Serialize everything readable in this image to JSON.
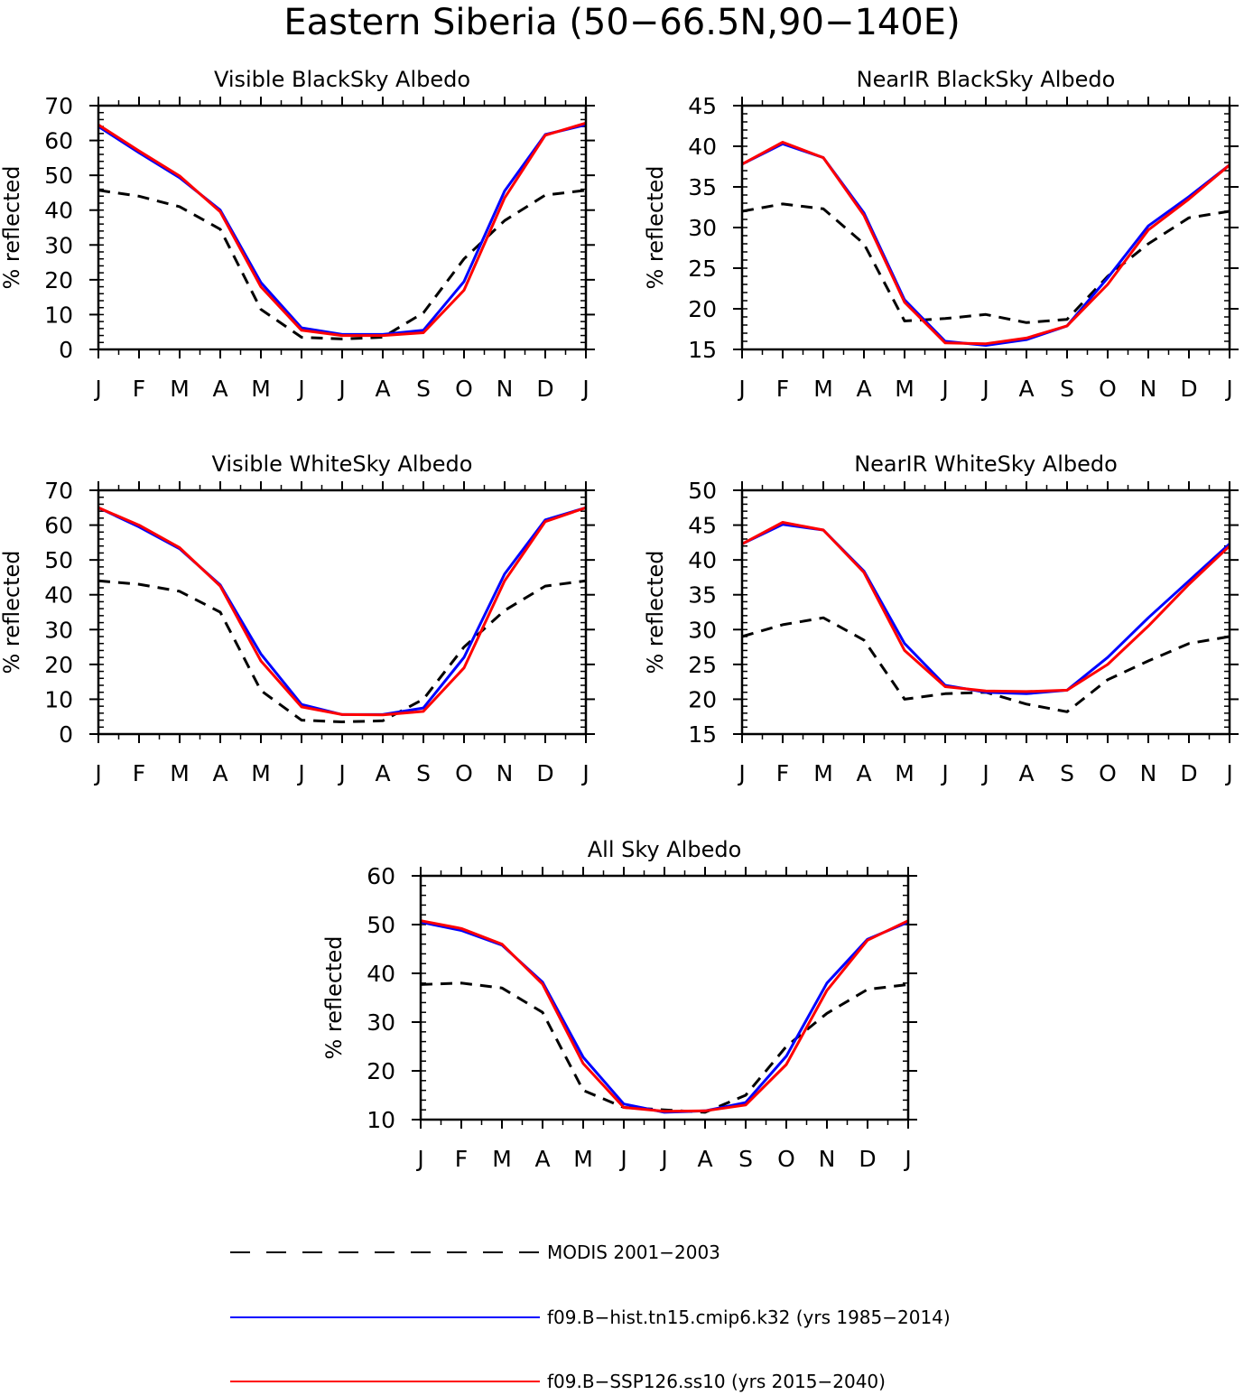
{
  "figure": {
    "title": "Eastern Siberia (50−66.5N,90−140E)"
  },
  "months": [
    "J",
    "F",
    "M",
    "A",
    "M",
    "J",
    "J",
    "A",
    "S",
    "O",
    "N",
    "D",
    "J"
  ],
  "colors": {
    "modis": "#000000",
    "hist": "#0000ff",
    "ssp": "#ff0000"
  },
  "legend": {
    "items": [
      {
        "key": "modis",
        "label": "MODIS 2001−2003",
        "color": "#000000",
        "style": "dashed"
      },
      {
        "key": "hist",
        "label": "f09.B−hist.tn15.cmip6.k32 (yrs 1985−2014)",
        "color": "#0000ff",
        "style": "solid"
      },
      {
        "key": "ssp",
        "label": "f09.B−SSP126.ss10 (yrs 2015−2040)",
        "color": "#ff0000",
        "style": "solid"
      }
    ]
  },
  "chart_data": [
    {
      "type": "line",
      "title": "Visible BlackSky Albedo",
      "ylabel": "% reflected",
      "xlabel": "",
      "categories": [
        "J",
        "F",
        "M",
        "A",
        "M",
        "J",
        "J",
        "A",
        "S",
        "O",
        "N",
        "D",
        "J"
      ],
      "ylim": [
        0,
        70
      ],
      "yticks": [
        0,
        10,
        20,
        30,
        40,
        50,
        60,
        70
      ],
      "series": [
        {
          "name": "MODIS 2001−2003",
          "key": "modis",
          "values": [
            45.7,
            44.0,
            41.0,
            34.5,
            11.5,
            3.5,
            3.0,
            3.5,
            10.5,
            26.0,
            37.0,
            44.3,
            45.7
          ]
        },
        {
          "name": "f09.B−hist.tn15.cmip6.k32 (yrs 1985−2014)",
          "key": "hist",
          "values": [
            64.0,
            56.5,
            49.3,
            40.0,
            19.2,
            6.2,
            4.3,
            4.3,
            5.5,
            19.5,
            45.5,
            61.7,
            64.5
          ]
        },
        {
          "name": "f09.B−SSP126.ss10 (yrs 2015−2040)",
          "key": "ssp",
          "values": [
            64.5,
            57.0,
            49.8,
            39.5,
            18.0,
            5.5,
            4.0,
            4.0,
            4.8,
            17.0,
            43.5,
            61.5,
            65.0
          ]
        }
      ]
    },
    {
      "type": "line",
      "title": "NearIR BlackSky Albedo",
      "ylabel": "% reflected",
      "xlabel": "",
      "categories": [
        "J",
        "F",
        "M",
        "A",
        "M",
        "J",
        "J",
        "A",
        "S",
        "O",
        "N",
        "D",
        "J"
      ],
      "ylim": [
        15,
        45
      ],
      "yticks": [
        15,
        20,
        25,
        30,
        35,
        40,
        45
      ],
      "series": [
        {
          "name": "MODIS 2001−2003",
          "key": "modis",
          "values": [
            32.0,
            32.9,
            32.3,
            28.0,
            18.5,
            18.8,
            19.3,
            18.3,
            18.7,
            24.0,
            28.0,
            31.2,
            32.0
          ]
        },
        {
          "name": "f09.B−hist.tn15.cmip6.k32 (yrs 1985−2014)",
          "key": "hist",
          "values": [
            37.8,
            40.3,
            38.6,
            31.8,
            21.1,
            16.0,
            15.5,
            16.2,
            17.9,
            23.8,
            30.2,
            33.8,
            37.7
          ]
        },
        {
          "name": "f09.B−SSP126.ss10 (yrs 2015−2040)",
          "key": "ssp",
          "values": [
            37.8,
            40.5,
            38.6,
            31.5,
            20.8,
            15.8,
            15.7,
            16.4,
            17.9,
            23.0,
            29.7,
            33.5,
            37.7
          ]
        }
      ]
    },
    {
      "type": "line",
      "title": "Visible WhiteSky Albedo",
      "ylabel": "% reflected",
      "xlabel": "",
      "categories": [
        "J",
        "F",
        "M",
        "A",
        "M",
        "J",
        "J",
        "A",
        "S",
        "O",
        "N",
        "D",
        "J"
      ],
      "ylim": [
        0,
        70
      ],
      "yticks": [
        0,
        10,
        20,
        30,
        40,
        50,
        60,
        70
      ],
      "series": [
        {
          "name": "MODIS 2001−2003",
          "key": "modis",
          "values": [
            44.0,
            43.0,
            41.0,
            35.0,
            12.5,
            4.0,
            3.5,
            3.8,
            10.0,
            25.0,
            35.5,
            42.5,
            44.0
          ]
        },
        {
          "name": "f09.B−hist.tn15.cmip6.k32 (yrs 1985−2014)",
          "key": "hist",
          "values": [
            65.0,
            59.5,
            53.2,
            42.8,
            23.0,
            8.5,
            5.6,
            5.6,
            7.5,
            22.0,
            46.0,
            61.5,
            65.0
          ]
        },
        {
          "name": "f09.B−SSP126.ss10 (yrs 2015−2040)",
          "key": "ssp",
          "values": [
            65.0,
            60.0,
            53.5,
            42.5,
            21.0,
            7.8,
            5.6,
            5.5,
            6.5,
            19.0,
            44.0,
            61.0,
            65.0
          ]
        }
      ]
    },
    {
      "type": "line",
      "title": "NearIR WhiteSky Albedo",
      "ylabel": "% reflected",
      "xlabel": "",
      "categories": [
        "J",
        "F",
        "M",
        "A",
        "M",
        "J",
        "J",
        "A",
        "S",
        "O",
        "N",
        "D",
        "J"
      ],
      "ylim": [
        15,
        50
      ],
      "yticks": [
        15,
        20,
        25,
        30,
        35,
        40,
        45,
        50
      ],
      "series": [
        {
          "name": "MODIS 2001−2003",
          "key": "modis",
          "values": [
            29.0,
            30.7,
            31.7,
            28.5,
            20.0,
            20.8,
            21.0,
            19.3,
            18.2,
            22.8,
            25.5,
            28.0,
            29.0
          ]
        },
        {
          "name": "f09.B−hist.tn15.cmip6.k32 (yrs 1985−2014)",
          "key": "hist",
          "values": [
            42.3,
            45.1,
            44.3,
            38.4,
            28.0,
            22.0,
            21.0,
            20.8,
            21.3,
            26.0,
            31.7,
            37.0,
            42.3
          ]
        },
        {
          "name": "f09.B−SSP126.ss10 (yrs 2015−2040)",
          "key": "ssp",
          "values": [
            42.3,
            45.4,
            44.3,
            38.2,
            27.0,
            21.8,
            21.2,
            21.1,
            21.3,
            25.0,
            30.5,
            36.5,
            42.0
          ]
        }
      ]
    },
    {
      "type": "line",
      "title": "All Sky Albedo",
      "ylabel": "% reflected",
      "xlabel": "",
      "categories": [
        "J",
        "F",
        "M",
        "A",
        "M",
        "J",
        "J",
        "A",
        "S",
        "O",
        "N",
        "D",
        "J"
      ],
      "ylim": [
        10,
        60
      ],
      "yticks": [
        10,
        20,
        30,
        40,
        50,
        60
      ],
      "series": [
        {
          "name": "MODIS 2001−2003",
          "key": "modis",
          "values": [
            37.7,
            38.0,
            37.0,
            32.0,
            16.0,
            12.5,
            12.0,
            11.5,
            15.0,
            25.0,
            31.8,
            36.7,
            37.7
          ]
        },
        {
          "name": "f09.B−hist.tn15.cmip6.k32 (yrs 1985−2014)",
          "key": "hist",
          "values": [
            50.5,
            48.8,
            45.8,
            38.2,
            22.8,
            13.2,
            11.5,
            11.8,
            13.5,
            23.0,
            38.0,
            47.0,
            50.5
          ]
        },
        {
          "name": "f09.B−SSP126.ss10 (yrs 2015−2040)",
          "key": "ssp",
          "values": [
            50.8,
            49.2,
            46.0,
            37.8,
            21.5,
            12.5,
            11.7,
            11.8,
            13.0,
            21.3,
            36.5,
            46.8,
            50.8
          ]
        }
      ]
    }
  ]
}
